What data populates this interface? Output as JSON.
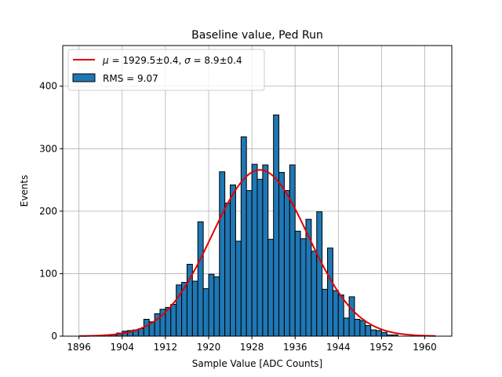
{
  "chart_data": {
    "type": "bar",
    "title": "Baseline value, Ped Run",
    "xlabel": "Sample Value [ADC Counts]",
    "ylabel": "Events",
    "xlim": [
      1893,
      1965
    ],
    "ylim": [
      0,
      465
    ],
    "xticks": [
      1896,
      1904,
      1912,
      1920,
      1928,
      1936,
      1944,
      1952,
      1960
    ],
    "yticks": [
      0,
      100,
      200,
      300,
      400
    ],
    "grid": true,
    "legend_position": "top-left",
    "bins": {
      "edges_start": 1899,
      "bin_width": 1,
      "values": [
        1,
        1,
        1,
        2,
        5,
        8,
        9,
        10,
        12,
        27,
        23,
        36,
        43,
        46,
        51,
        82,
        86,
        115,
        88,
        183,
        76,
        99,
        95,
        263,
        213,
        242,
        152,
        319,
        233,
        275,
        251,
        274,
        155,
        354,
        262,
        233,
        274,
        168,
        156,
        187,
        136,
        199,
        75,
        141,
        73,
        66,
        29,
        63,
        27,
        25,
        17,
        10,
        9,
        6,
        2,
        2
      ]
    },
    "series": [
      {
        "name": "RMS = 9.07",
        "kind": "histogram",
        "color": "#1f77b4",
        "edgecolor": "#000000"
      },
      {
        "name": "μ = 1929.5±0.4, σ = 8.9±0.4",
        "kind": "gaussian-fit",
        "mu": 1929.5,
        "sigma": 8.9,
        "amplitude": 266,
        "x_range": [
          1896,
          1962
        ],
        "color": "#e00000"
      }
    ]
  },
  "legend": {
    "fit_label_mu_symbol": "μ",
    "fit_label_mu_rest": " = 1929.5±0.4, ",
    "fit_label_sigma_symbol": "σ",
    "fit_label_sigma_rest": " = 8.9±0.4",
    "hist_label": "RMS = 9.07"
  }
}
